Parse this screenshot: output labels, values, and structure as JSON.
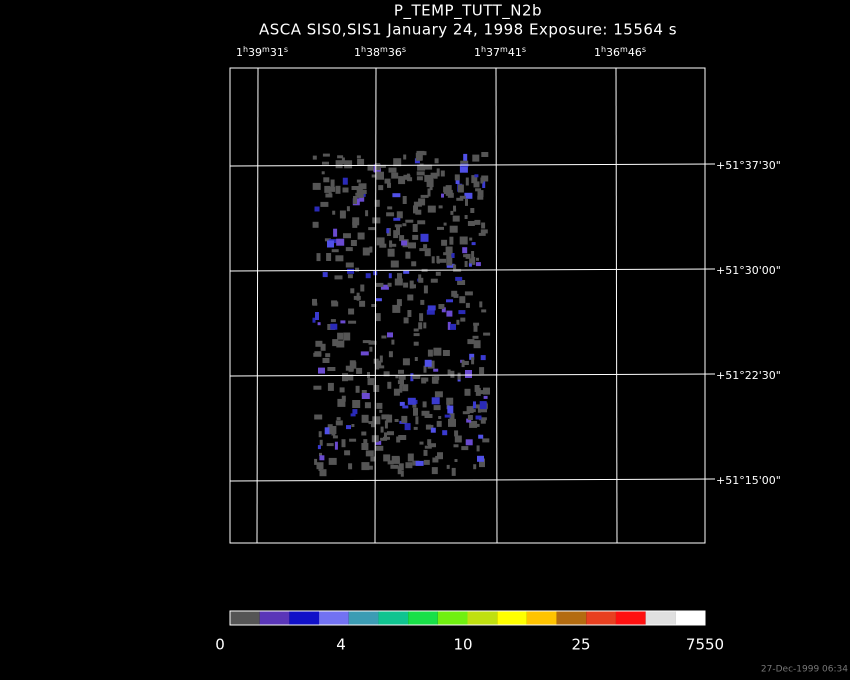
{
  "header": {
    "title": "P_TEMP_TUTT_N2b",
    "subtitle": "ASCA SIS0,SIS1 January 24, 1998 Exposure: 15564 s"
  },
  "image": {
    "ra_labels": [
      "1h39m31s",
      "1h38m36s",
      "1h37m41s",
      "1h36m46s"
    ],
    "dec_labels": [
      "+51°37'30\"",
      "+51°30'00\"",
      "+51°22'30\"",
      "+51°15'00\""
    ]
  },
  "colorbar": {
    "colors": [
      "#555555",
      "#5a36b8",
      "#1010c8",
      "#7272f2",
      "#3c9cb4",
      "#10c490",
      "#18e048",
      "#70f010",
      "#c0e010",
      "#ffff00",
      "#ffc400",
      "#b46c10",
      "#e84020",
      "#ff1010",
      "#e0e0e0",
      "#ffffff"
    ],
    "labels": [
      "0",
      "4",
      "10",
      "25",
      "7550"
    ]
  },
  "footer": {
    "timestamp": "27-Dec-1999 06:34"
  }
}
